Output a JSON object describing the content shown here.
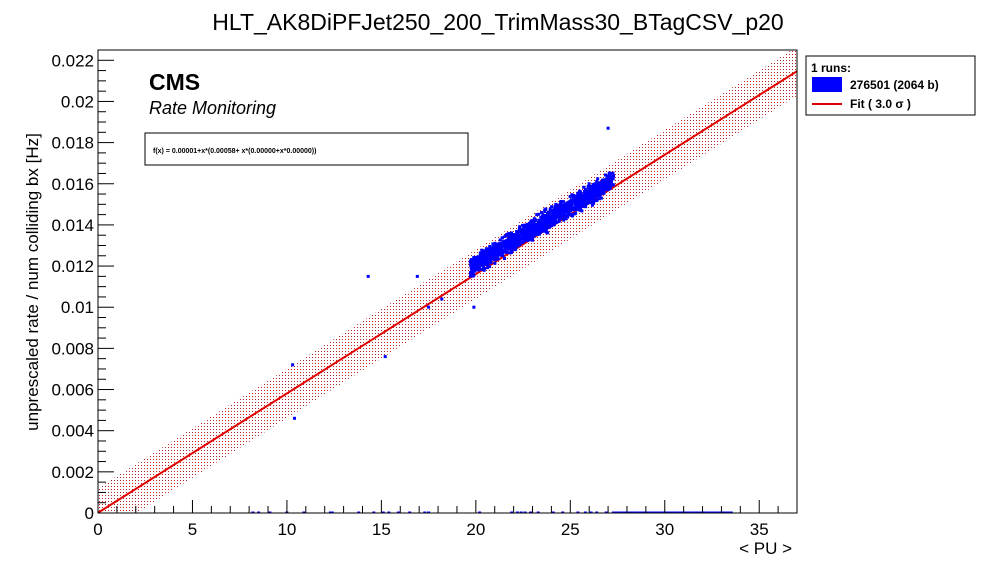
{
  "chart_data": {
    "type": "scatter",
    "title": "HLT_AK8DiPFJet250_200_TrimMass30_BTagCSV_p20",
    "xlabel": "< PU >",
    "ylabel": "unprescaled rate / num colliding bx [Hz]",
    "xlim": [
      0,
      37
    ],
    "ylim": [
      0,
      0.0225
    ],
    "x_ticks": [
      0,
      5,
      10,
      15,
      20,
      25,
      30,
      35
    ],
    "x_tick_labels": [
      "0",
      "5",
      "10",
      "15",
      "20",
      "25",
      "30",
      "35"
    ],
    "y_ticks": [
      0,
      0.002,
      0.004,
      0.006,
      0.008,
      0.01,
      0.012,
      0.014,
      0.016,
      0.018,
      0.02,
      0.022
    ],
    "y_tick_labels": [
      "0",
      "0.002",
      "0.004",
      "0.006",
      "0.008",
      "0.01",
      "0.012",
      "0.014",
      "0.016",
      "0.018",
      "0.02",
      "0.022"
    ],
    "grid": false,
    "legend_position": "right-top",
    "annotations": {
      "experiment": "CMS",
      "subtitle": "Rate Monitoring",
      "fit_formula": "f(x) = 0.00001+x*(0.00058+ x*(0.00000+x*0.00000))"
    },
    "legend": {
      "header": "1 runs:",
      "entries": [
        {
          "label": "276501 (2064 b)",
          "type": "box",
          "color": "#0000ff"
        },
        {
          "label": "Fit ( 3.0 σ )",
          "type": "line",
          "color": "#e00000"
        }
      ]
    },
    "fit": {
      "intercept": 1e-05,
      "slope": 0.00058,
      "band_sigma": 3.0,
      "band_halfwidth": 0.0012,
      "x_range": [
        0,
        37
      ],
      "line_color": "#e00000",
      "band_color": "#c02020"
    },
    "series": [
      {
        "name": "276501 (2064 b)",
        "color": "#0000ff",
        "points": [
          [
            10.3,
            0.0072
          ],
          [
            10.4,
            0.0046
          ],
          [
            14.3,
            0.0115
          ],
          [
            15.2,
            0.0076
          ],
          [
            16.9,
            0.0115
          ],
          [
            17.5,
            0.01
          ],
          [
            18.2,
            0.0104
          ],
          [
            19.9,
            0.01
          ],
          [
            27.0,
            0.0187
          ]
        ],
        "dense_cluster": {
          "x_range": [
            19.7,
            27.3
          ],
          "y_center_at_x_min": 0.0119,
          "y_center_at_x_max": 0.0162,
          "y_halfwidth": 0.0007
        },
        "zero_rate_points_x": [
          8.2,
          8.5,
          9.1,
          10.0,
          10.9,
          12.3,
          12.4,
          13.8,
          14.6,
          15.1,
          15.4,
          15.9,
          16.5,
          17.3,
          17.5,
          20.2,
          21.9,
          22.2,
          22.4,
          22.6,
          22.9,
          23.3,
          24.1,
          24.6,
          25.4,
          25.8,
          26.1,
          26.4,
          26.9
        ],
        "zero_rate_x_range": [
          27.2,
          33.6
        ]
      }
    ]
  }
}
